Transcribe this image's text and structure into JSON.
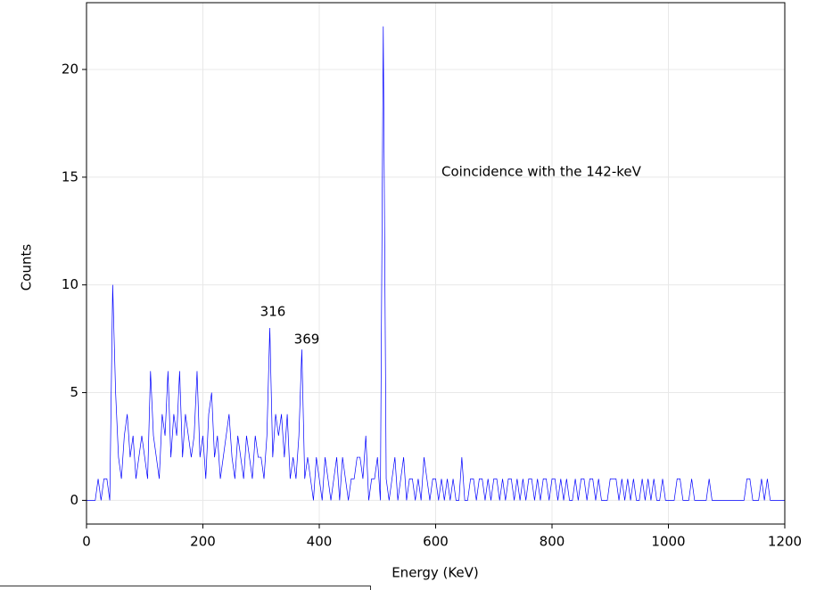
{
  "chart_data": {
    "type": "line",
    "xlabel": "Energy (KeV)",
    "ylabel": "Counts",
    "annotations": [
      "316",
      "369",
      "Coincidence with the 142-keV"
    ],
    "xlim": [
      0,
      1200
    ],
    "ylim": [
      -1.1,
      23.1
    ],
    "xticks": [
      0,
      200,
      400,
      600,
      800,
      1000,
      1200
    ],
    "yticks": [
      0,
      5,
      10,
      15,
      20
    ],
    "grid": true,
    "x": [
      0,
      5,
      10,
      15,
      20,
      25,
      30,
      35,
      40,
      45,
      50,
      55,
      60,
      65,
      70,
      75,
      80,
      85,
      90,
      95,
      100,
      105,
      110,
      115,
      120,
      125,
      130,
      135,
      140,
      145,
      150,
      155,
      160,
      165,
      170,
      175,
      180,
      185,
      190,
      195,
      200,
      205,
      210,
      215,
      220,
      225,
      230,
      235,
      240,
      245,
      250,
      255,
      260,
      265,
      270,
      275,
      280,
      285,
      290,
      295,
      300,
      305,
      310,
      315,
      320,
      325,
      330,
      335,
      340,
      345,
      350,
      355,
      360,
      365,
      370,
      375,
      380,
      385,
      390,
      395,
      400,
      405,
      410,
      415,
      420,
      425,
      430,
      435,
      440,
      445,
      450,
      455,
      460,
      465,
      470,
      475,
      480,
      485,
      490,
      495,
      500,
      505,
      510,
      515,
      520,
      525,
      530,
      535,
      540,
      545,
      550,
      555,
      560,
      565,
      570,
      575,
      580,
      585,
      590,
      595,
      600,
      605,
      610,
      615,
      620,
      625,
      630,
      635,
      640,
      645,
      650,
      655,
      660,
      665,
      670,
      675,
      680,
      685,
      690,
      695,
      700,
      705,
      710,
      715,
      720,
      725,
      730,
      735,
      740,
      745,
      750,
      755,
      760,
      765,
      770,
      775,
      780,
      785,
      790,
      795,
      800,
      805,
      810,
      815,
      820,
      825,
      830,
      835,
      840,
      845,
      850,
      855,
      860,
      865,
      870,
      875,
      880,
      885,
      890,
      895,
      900,
      905,
      910,
      915,
      920,
      925,
      930,
      935,
      940,
      945,
      950,
      955,
      960,
      965,
      970,
      975,
      980,
      985,
      990,
      995,
      1000,
      1005,
      1010,
      1015,
      1020,
      1025,
      1030,
      1035,
      1040,
      1045,
      1050,
      1055,
      1060,
      1065,
      1070,
      1075,
      1080,
      1085,
      1090,
      1095,
      1100,
      1105,
      1110,
      1115,
      1120,
      1125,
      1130,
      1135,
      1140,
      1145,
      1150,
      1155,
      1160,
      1165,
      1170,
      1175,
      1180,
      1185,
      1190,
      1195,
      1200
    ],
    "series": [
      {
        "color": "#0000ff",
        "values": [
          0,
          0,
          0,
          0,
          1,
          0,
          1,
          1,
          0,
          10,
          5,
          2,
          1,
          3,
          4,
          2,
          3,
          1,
          2,
          3,
          2,
          1,
          6,
          3,
          2,
          1,
          4,
          3,
          6,
          2,
          4,
          3,
          6,
          2,
          4,
          3,
          2,
          3,
          6,
          2,
          3,
          1,
          4,
          5,
          2,
          3,
          1,
          2,
          3,
          4,
          2,
          1,
          3,
          2,
          1,
          3,
          2,
          1,
          3,
          2,
          2,
          1,
          3,
          8,
          2,
          4,
          3,
          4,
          2,
          4,
          1,
          2,
          1,
          3,
          7,
          1,
          2,
          1,
          0,
          2,
          1,
          0,
          2,
          1,
          0,
          1,
          2,
          0,
          2,
          1,
          0,
          1,
          1,
          2,
          2,
          1,
          3,
          0,
          1,
          1,
          2,
          0,
          22,
          1,
          0,
          1,
          2,
          0,
          1,
          2,
          0,
          1,
          1,
          0,
          1,
          0,
          2,
          1,
          0,
          1,
          1,
          0,
          1,
          0,
          1,
          0,
          1,
          0,
          0,
          2,
          0,
          0,
          1,
          1,
          0,
          1,
          1,
          0,
          1,
          0,
          1,
          1,
          0,
          1,
          0,
          1,
          1,
          0,
          1,
          0,
          1,
          0,
          1,
          1,
          0,
          1,
          0,
          1,
          1,
          0,
          1,
          1,
          0,
          1,
          0,
          1,
          0,
          0,
          1,
          0,
          1,
          1,
          0,
          1,
          1,
          0,
          1,
          0,
          0,
          0,
          1,
          1,
          1,
          0,
          1,
          0,
          1,
          0,
          1,
          0,
          0,
          1,
          0,
          1,
          0,
          1,
          0,
          0,
          1,
          0,
          0,
          0,
          0,
          1,
          1,
          0,
          0,
          0,
          1,
          0,
          0,
          0,
          0,
          0,
          1,
          0,
          0,
          0,
          0,
          0,
          0,
          0,
          0,
          0,
          0,
          0,
          0,
          1,
          1,
          0,
          0,
          0,
          1,
          0,
          1,
          0,
          0,
          0,
          0,
          0,
          0
        ]
      }
    ]
  }
}
